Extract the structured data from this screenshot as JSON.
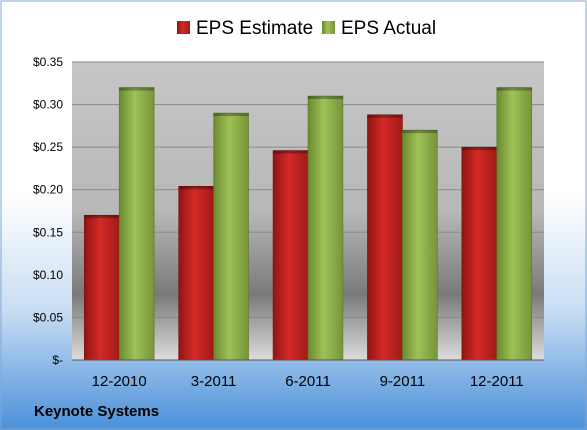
{
  "chart_data": {
    "type": "bar",
    "categories": [
      "12-2010",
      "3-2011",
      "6-2011",
      "9-2011",
      "12-2011"
    ],
    "series": [
      {
        "name": "EPS Estimate",
        "values": [
          0.17,
          0.204,
          0.246,
          0.288,
          0.25
        ]
      },
      {
        "name": "EPS Actual",
        "values": [
          0.32,
          0.29,
          0.31,
          0.27,
          0.32
        ]
      }
    ],
    "y_tick_labels": [
      "$-",
      "$0.05",
      "$0.10",
      "$0.15",
      "$0.20",
      "$0.25",
      "$0.30",
      "$0.35"
    ],
    "ylim": [
      0,
      0.35
    ],
    "grid": true,
    "legend_position": "top"
  },
  "footer": {
    "company": "Keynote Systems"
  },
  "colors": {
    "estimate": "#c0201e",
    "actual": "#8eb04a",
    "background_top": "#ffffff",
    "background_bottom": "#4a90d9"
  }
}
